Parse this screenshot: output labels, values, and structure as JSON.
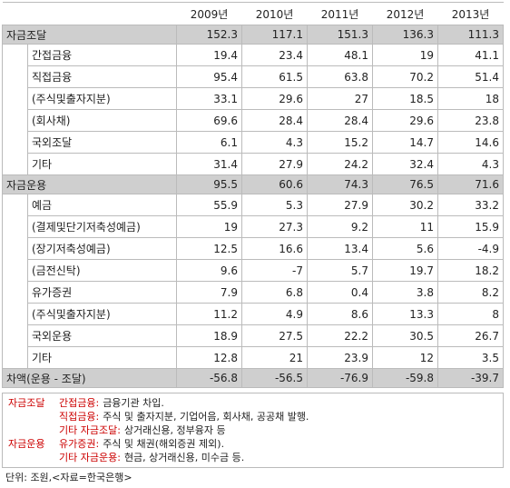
{
  "table": {
    "years": [
      "2009년",
      "2010년",
      "2011년",
      "2012년",
      "2013년"
    ],
    "sections": [
      {
        "label": "자금조달",
        "values": [
          152.3,
          117.1,
          151.3,
          136.3,
          111.3
        ],
        "items": [
          {
            "label": "간접금융",
            "values": [
              19.4,
              23.4,
              48.1,
              19,
              41.1
            ]
          },
          {
            "label": "직접금융",
            "values": [
              95.4,
              61.5,
              63.8,
              70.2,
              51.4
            ]
          },
          {
            "label": "(주식및출자지분)",
            "values": [
              33.1,
              29.6,
              27,
              18.5,
              18
            ]
          },
          {
            "label": "(회사채)",
            "values": [
              69.6,
              28.4,
              28.4,
              29.6,
              23.8
            ]
          },
          {
            "label": "국외조달",
            "values": [
              6.1,
              4.3,
              15.2,
              14.7,
              14.6
            ]
          },
          {
            "label": "기타",
            "values": [
              31.4,
              27.9,
              24.2,
              32.4,
              4.3
            ]
          }
        ]
      },
      {
        "label": "자금운용",
        "values": [
          95.5,
          60.6,
          74.3,
          76.5,
          71.6
        ],
        "items": [
          {
            "label": "예금",
            "values": [
              55.9,
              5.3,
              27.9,
              30.2,
              33.2
            ]
          },
          {
            "label": "(결제및단기저축성예금)",
            "values": [
              19,
              27.3,
              9.2,
              11,
              15.9
            ]
          },
          {
            "label": "(장기저축성예금)",
            "values": [
              12.5,
              16.6,
              13.4,
              5.6,
              -4.9
            ]
          },
          {
            "label": "(금전신탁)",
            "values": [
              9.6,
              -7,
              5.7,
              19.7,
              18.2
            ]
          },
          {
            "label": "유가증권",
            "values": [
              7.9,
              6.8,
              0.4,
              3.8,
              8.2
            ]
          },
          {
            "label": "(주식및출자지분)",
            "values": [
              11.2,
              4.9,
              8.6,
              13.3,
              8
            ]
          },
          {
            "label": "국외운용",
            "values": [
              18.9,
              27.5,
              22.2,
              30.5,
              26.7
            ]
          },
          {
            "label": "기타",
            "values": [
              12.8,
              21,
              23.9,
              12,
              3.5
            ]
          }
        ]
      }
    ],
    "total": {
      "label": "차액(운용 - 조달)",
      "values": [
        -56.8,
        -56.5,
        -76.9,
        -59.8,
        -39.7
      ]
    }
  },
  "notes": [
    {
      "category": "자금조달",
      "term": "간접금융:",
      "text": "금융기관 차입."
    },
    {
      "category": null,
      "term": "직접금융:",
      "text": "주식 및 출자지분, 기업어음, 회사채, 공공채 발행."
    },
    {
      "category": null,
      "term": "기타 자금조달:",
      "text": "상거래신용, 정부융자 등"
    },
    {
      "category": "자금운용",
      "term": "유가증권:",
      "text": "주식 및 채권(해외증권 제외)."
    },
    {
      "category": null,
      "term": "기타 자금운용:",
      "text": "현금, 상거래신용, 미수금 등."
    }
  ],
  "footer": "단위: 조원,<자료=한국은행>"
}
